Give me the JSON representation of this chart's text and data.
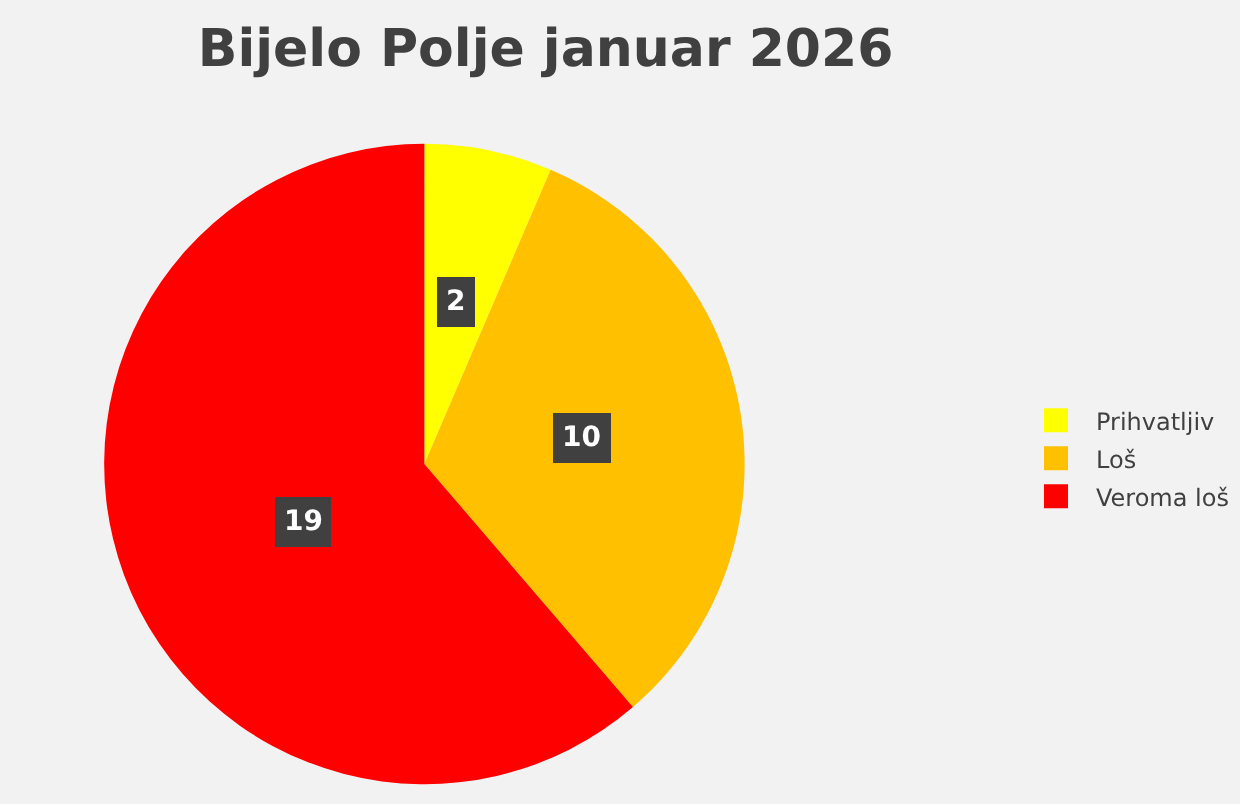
{
  "chart_data": {
    "type": "pie",
    "title": "Bijelo Polje januar 2026",
    "categories": [
      "Prihvatljiv",
      "Loš",
      "Veroma loš"
    ],
    "values": [
      2,
      10,
      19
    ],
    "colors": [
      "#ffff00",
      "#ffc000",
      "#ff0000"
    ],
    "data_labels": true,
    "legend": "right"
  }
}
